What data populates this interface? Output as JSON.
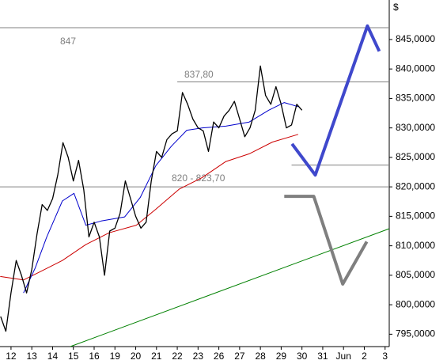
{
  "chart_data": {
    "type": "line",
    "currency": "$",
    "xlim": [
      -0.53,
      18.2
    ],
    "ylim": [
      792.9,
      851.7
    ],
    "xticks": [
      {
        "value": 0,
        "label": "12"
      },
      {
        "value": 1,
        "label": "13"
      },
      {
        "value": 2,
        "label": "14"
      },
      {
        "value": 3,
        "label": "15"
      },
      {
        "value": 4,
        "label": "16"
      },
      {
        "value": 5,
        "label": "19"
      },
      {
        "value": 6,
        "label": "20"
      },
      {
        "value": 7,
        "label": "21"
      },
      {
        "value": 8,
        "label": "22"
      },
      {
        "value": 9,
        "label": "23"
      },
      {
        "value": 10,
        "label": "26"
      },
      {
        "value": 11,
        "label": "27"
      },
      {
        "value": 12,
        "label": "28"
      },
      {
        "value": 13,
        "label": "29"
      },
      {
        "value": 14,
        "label": "30"
      },
      {
        "value": 15,
        "label": "31"
      },
      {
        "value": 16,
        "label": "Jun"
      },
      {
        "value": 17,
        "label": "2"
      },
      {
        "value": 18,
        "label": "3"
      }
    ],
    "yticks": [
      {
        "value": 845,
        "label": "845,0000"
      },
      {
        "value": 840,
        "label": "840,0000"
      },
      {
        "value": 835,
        "label": "835,0000"
      },
      {
        "value": 830,
        "label": "830,0000"
      },
      {
        "value": 825,
        "label": "825,0000"
      },
      {
        "value": 820,
        "label": "820,0000"
      },
      {
        "value": 815,
        "label": "815,0000"
      },
      {
        "value": 810,
        "label": "810,0000"
      },
      {
        "value": 805,
        "label": "805,0000"
      },
      {
        "value": 800,
        "label": "800,0000"
      },
      {
        "value": 795,
        "label": "795,0000"
      }
    ],
    "levels": [
      {
        "value": 847,
        "x0": -0.53
      },
      {
        "value": 837.8,
        "x0": 8.0
      },
      {
        "value": 823.7,
        "x0": 13.5
      },
      {
        "value": 820,
        "x0": -0.53
      }
    ],
    "annotations": [
      "847",
      "837,80",
      "820 - 823,70"
    ],
    "series": [
      {
        "color": "#cc0000",
        "line_width": 1,
        "x": [
          -0.52,
          0.6,
          1.35,
          2.47,
          3.6,
          4.72,
          6.03,
          6.97,
          8.09,
          9.21,
          10.34,
          11.46,
          12.58,
          13.82
        ],
        "values": [
          804.8,
          804.2,
          805.5,
          807.5,
          810.2,
          812.2,
          813.5,
          816.2,
          819.6,
          821.6,
          824.3,
          825.6,
          827.6,
          828.9
        ]
      },
      {
        "color": "#0000cc",
        "line_width": 1,
        "x": [
          0.6,
          1.16,
          1.72,
          2.47,
          3.03,
          3.6,
          4.34,
          5.47,
          6.22,
          6.97,
          7.72,
          8.46,
          9.21,
          10.34,
          11.46,
          12.4,
          13.15,
          13.82
        ],
        "values": [
          802,
          806.2,
          811.5,
          817.6,
          818.9,
          813.5,
          814.2,
          814.9,
          818.2,
          823.6,
          826.9,
          829.6,
          830,
          830.3,
          831,
          833,
          834.3,
          833.6
        ]
      },
      {
        "color": "#000000",
        "line_width": 1.3,
        "x": [
          -0.5,
          -0.25,
          0,
          0.25,
          0.5,
          0.75,
          1,
          1.25,
          1.5,
          1.75,
          2,
          2.25,
          2.5,
          2.75,
          3,
          3.25,
          3.5,
          3.75,
          4,
          4.25,
          4.5,
          4.75,
          5,
          5.25,
          5.5,
          5.75,
          6,
          6.25,
          6.5,
          6.75,
          7,
          7.25,
          7.5,
          7.75,
          8,
          8.25,
          8.5,
          8.75,
          9,
          9.25,
          9.5,
          9.75,
          10,
          10.25,
          10.5,
          10.75,
          11,
          11.25,
          11.5,
          11.75,
          12,
          12.25,
          12.5,
          12.75,
          13,
          13.25,
          13.5,
          13.75,
          14
        ],
        "values": [
          798,
          795.5,
          802,
          807.5,
          805,
          802,
          806,
          812,
          817,
          816,
          818,
          822,
          827.5,
          825,
          821,
          824.5,
          819.5,
          811.5,
          814,
          811.5,
          805,
          812.5,
          813,
          815.5,
          821,
          818,
          815,
          813,
          814,
          821,
          826,
          825,
          828,
          829,
          829.5,
          836,
          834,
          831.5,
          830,
          829.5,
          826,
          831,
          830,
          832,
          833,
          834.5,
          831.5,
          828.5,
          830,
          833,
          840.5,
          835.5,
          834,
          837,
          834,
          830,
          830.5,
          834,
          833
        ]
      },
      {
        "color": "#008000",
        "line_width": 1,
        "x": [
          2.85,
          18.2
        ],
        "values": [
          792.9,
          812.9
        ]
      },
      {
        "color": "#3f48cc",
        "line_width": 4,
        "x": [
          13.52,
          14.64,
          17.15,
          17.72
        ],
        "values": [
          827.3,
          822,
          847.3,
          843
        ]
      },
      {
        "color": "#7f7f7f",
        "line_width": 4,
        "x": [
          13.15,
          14.57,
          15.96,
          17.12
        ],
        "values": [
          818.4,
          818.4,
          803.5,
          810.7
        ]
      }
    ]
  }
}
